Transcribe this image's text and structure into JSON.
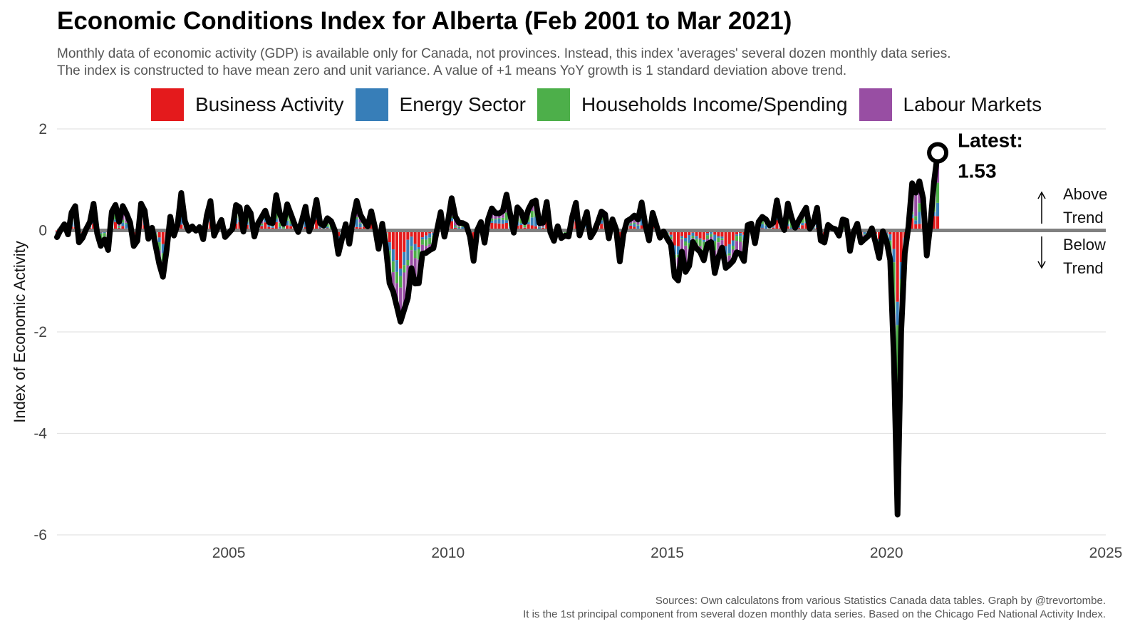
{
  "header": {
    "title": "Economic Conditions Index for Alberta (Feb 2001 to Mar 2021)",
    "subtitle_line1": "Monthly data of economic activity (GDP) is available only for Canada, not provinces. Instead, this index 'averages' several dozen monthly data series.",
    "subtitle_line2": "The index is constructed to have mean zero and unit variance. A value of +1 means YoY growth is 1 standard deviation above trend."
  },
  "legend": [
    {
      "label": "Business Activity",
      "color": "#e41a1c"
    },
    {
      "label": "Energy Sector",
      "color": "#377eb8"
    },
    {
      "label": "Households Income/Spending",
      "color": "#4daf4a"
    },
    {
      "label": "Labour Markets",
      "color": "#984ea3"
    }
  ],
  "footer": {
    "line1": "Sources: Own calculatons from various Statistics Canada data tables. Graph by @trevortombe.",
    "line2": "It is the 1st principal component from several dozen monthly data series. Based on the Chicago Fed National Activity Index."
  },
  "chart_data": {
    "type": "bar",
    "ylabel": "Index of Economic Activity",
    "ylim": [
      -6,
      2
    ],
    "xlim": [
      "2001-02",
      "2025-01"
    ],
    "y_ticks": [
      2,
      0,
      -2,
      -4,
      -6
    ],
    "x_ticks": [
      "2005",
      "2010",
      "2015",
      "2020",
      "2025"
    ],
    "stacked": true,
    "series_names": [
      "Business Activity",
      "Energy Sector",
      "Households Income/Spending",
      "Labour Markets"
    ],
    "index_line": {
      "name": "Index",
      "points": [
        [
          "2001-02",
          -0.2
        ],
        [
          "2001-06",
          0.3
        ],
        [
          "2001-10",
          -0.2
        ],
        [
          "2001-12",
          0.6
        ],
        [
          "2002-02",
          -0.5
        ],
        [
          "2002-05",
          0.2
        ],
        [
          "2002-08",
          0.5
        ],
        [
          "2002-11",
          -0.2
        ],
        [
          "2003-02",
          0.4
        ],
        [
          "2003-05",
          -0.4
        ],
        [
          "2003-07",
          -0.8
        ],
        [
          "2003-09",
          0.0
        ],
        [
          "2003-12",
          0.4
        ],
        [
          "2004-04",
          -0.1
        ],
        [
          "2004-08",
          0.3
        ],
        [
          "2004-12",
          -0.1
        ],
        [
          "2005-04",
          0.4
        ],
        [
          "2005-08",
          0.1
        ],
        [
          "2005-12",
          0.3
        ],
        [
          "2006-04",
          0.4
        ],
        [
          "2006-08",
          0.1
        ],
        [
          "2006-12",
          0.3
        ],
        [
          "2007-04",
          0.2
        ],
        [
          "2007-08",
          -0.3
        ],
        [
          "2007-12",
          0.4
        ],
        [
          "2008-03",
          0.2
        ],
        [
          "2008-07",
          -0.1
        ],
        [
          "2008-10",
          -1.2
        ],
        [
          "2008-12",
          -1.8
        ],
        [
          "2009-03",
          -1.1
        ],
        [
          "2009-07",
          -0.5
        ],
        [
          "2009-11",
          0.1
        ],
        [
          "2010-03",
          0.4
        ],
        [
          "2010-08",
          -0.3
        ],
        [
          "2010-12",
          0.2
        ],
        [
          "2011-04",
          0.5
        ],
        [
          "2011-08",
          0.2
        ],
        [
          "2011-12",
          0.5
        ],
        [
          "2012-04",
          0.2
        ],
        [
          "2012-08",
          -0.2
        ],
        [
          "2012-12",
          0.3
        ],
        [
          "2013-04",
          0.0
        ],
        [
          "2013-08",
          0.3
        ],
        [
          "2013-12",
          -0.3
        ],
        [
          "2014-04",
          0.4
        ],
        [
          "2014-08",
          0.1
        ],
        [
          "2014-12",
          0.0
        ],
        [
          "2015-04",
          -0.9
        ],
        [
          "2015-08",
          -0.4
        ],
        [
          "2015-12",
          -0.4
        ],
        [
          "2016-04",
          -0.6
        ],
        [
          "2016-08",
          -0.6
        ],
        [
          "2016-12",
          0.0
        ],
        [
          "2017-04",
          0.2
        ],
        [
          "2017-08",
          0.3
        ],
        [
          "2017-12",
          0.2
        ],
        [
          "2018-04",
          0.3
        ],
        [
          "2018-08",
          -0.1
        ],
        [
          "2018-12",
          0.1
        ],
        [
          "2019-04",
          -0.1
        ],
        [
          "2019-08",
          -0.1
        ],
        [
          "2019-12",
          -0.3
        ],
        [
          "2020-02",
          -0.3
        ],
        [
          "2020-03",
          -2.5
        ],
        [
          "2020-04",
          -5.6
        ],
        [
          "2020-05",
          -2.0
        ],
        [
          "2020-06",
          -0.3
        ],
        [
          "2020-08",
          0.6
        ],
        [
          "2020-10",
          1.2
        ],
        [
          "2020-12",
          -0.5
        ],
        [
          "2021-02",
          1.0
        ],
        [
          "2021-03",
          1.53
        ]
      ]
    },
    "annotations": {
      "latest_label": "Latest:",
      "latest_value": "1.53",
      "above_line1": "Above",
      "above_line2": "Trend",
      "below_line1": "Below",
      "below_line2": "Trend"
    }
  }
}
